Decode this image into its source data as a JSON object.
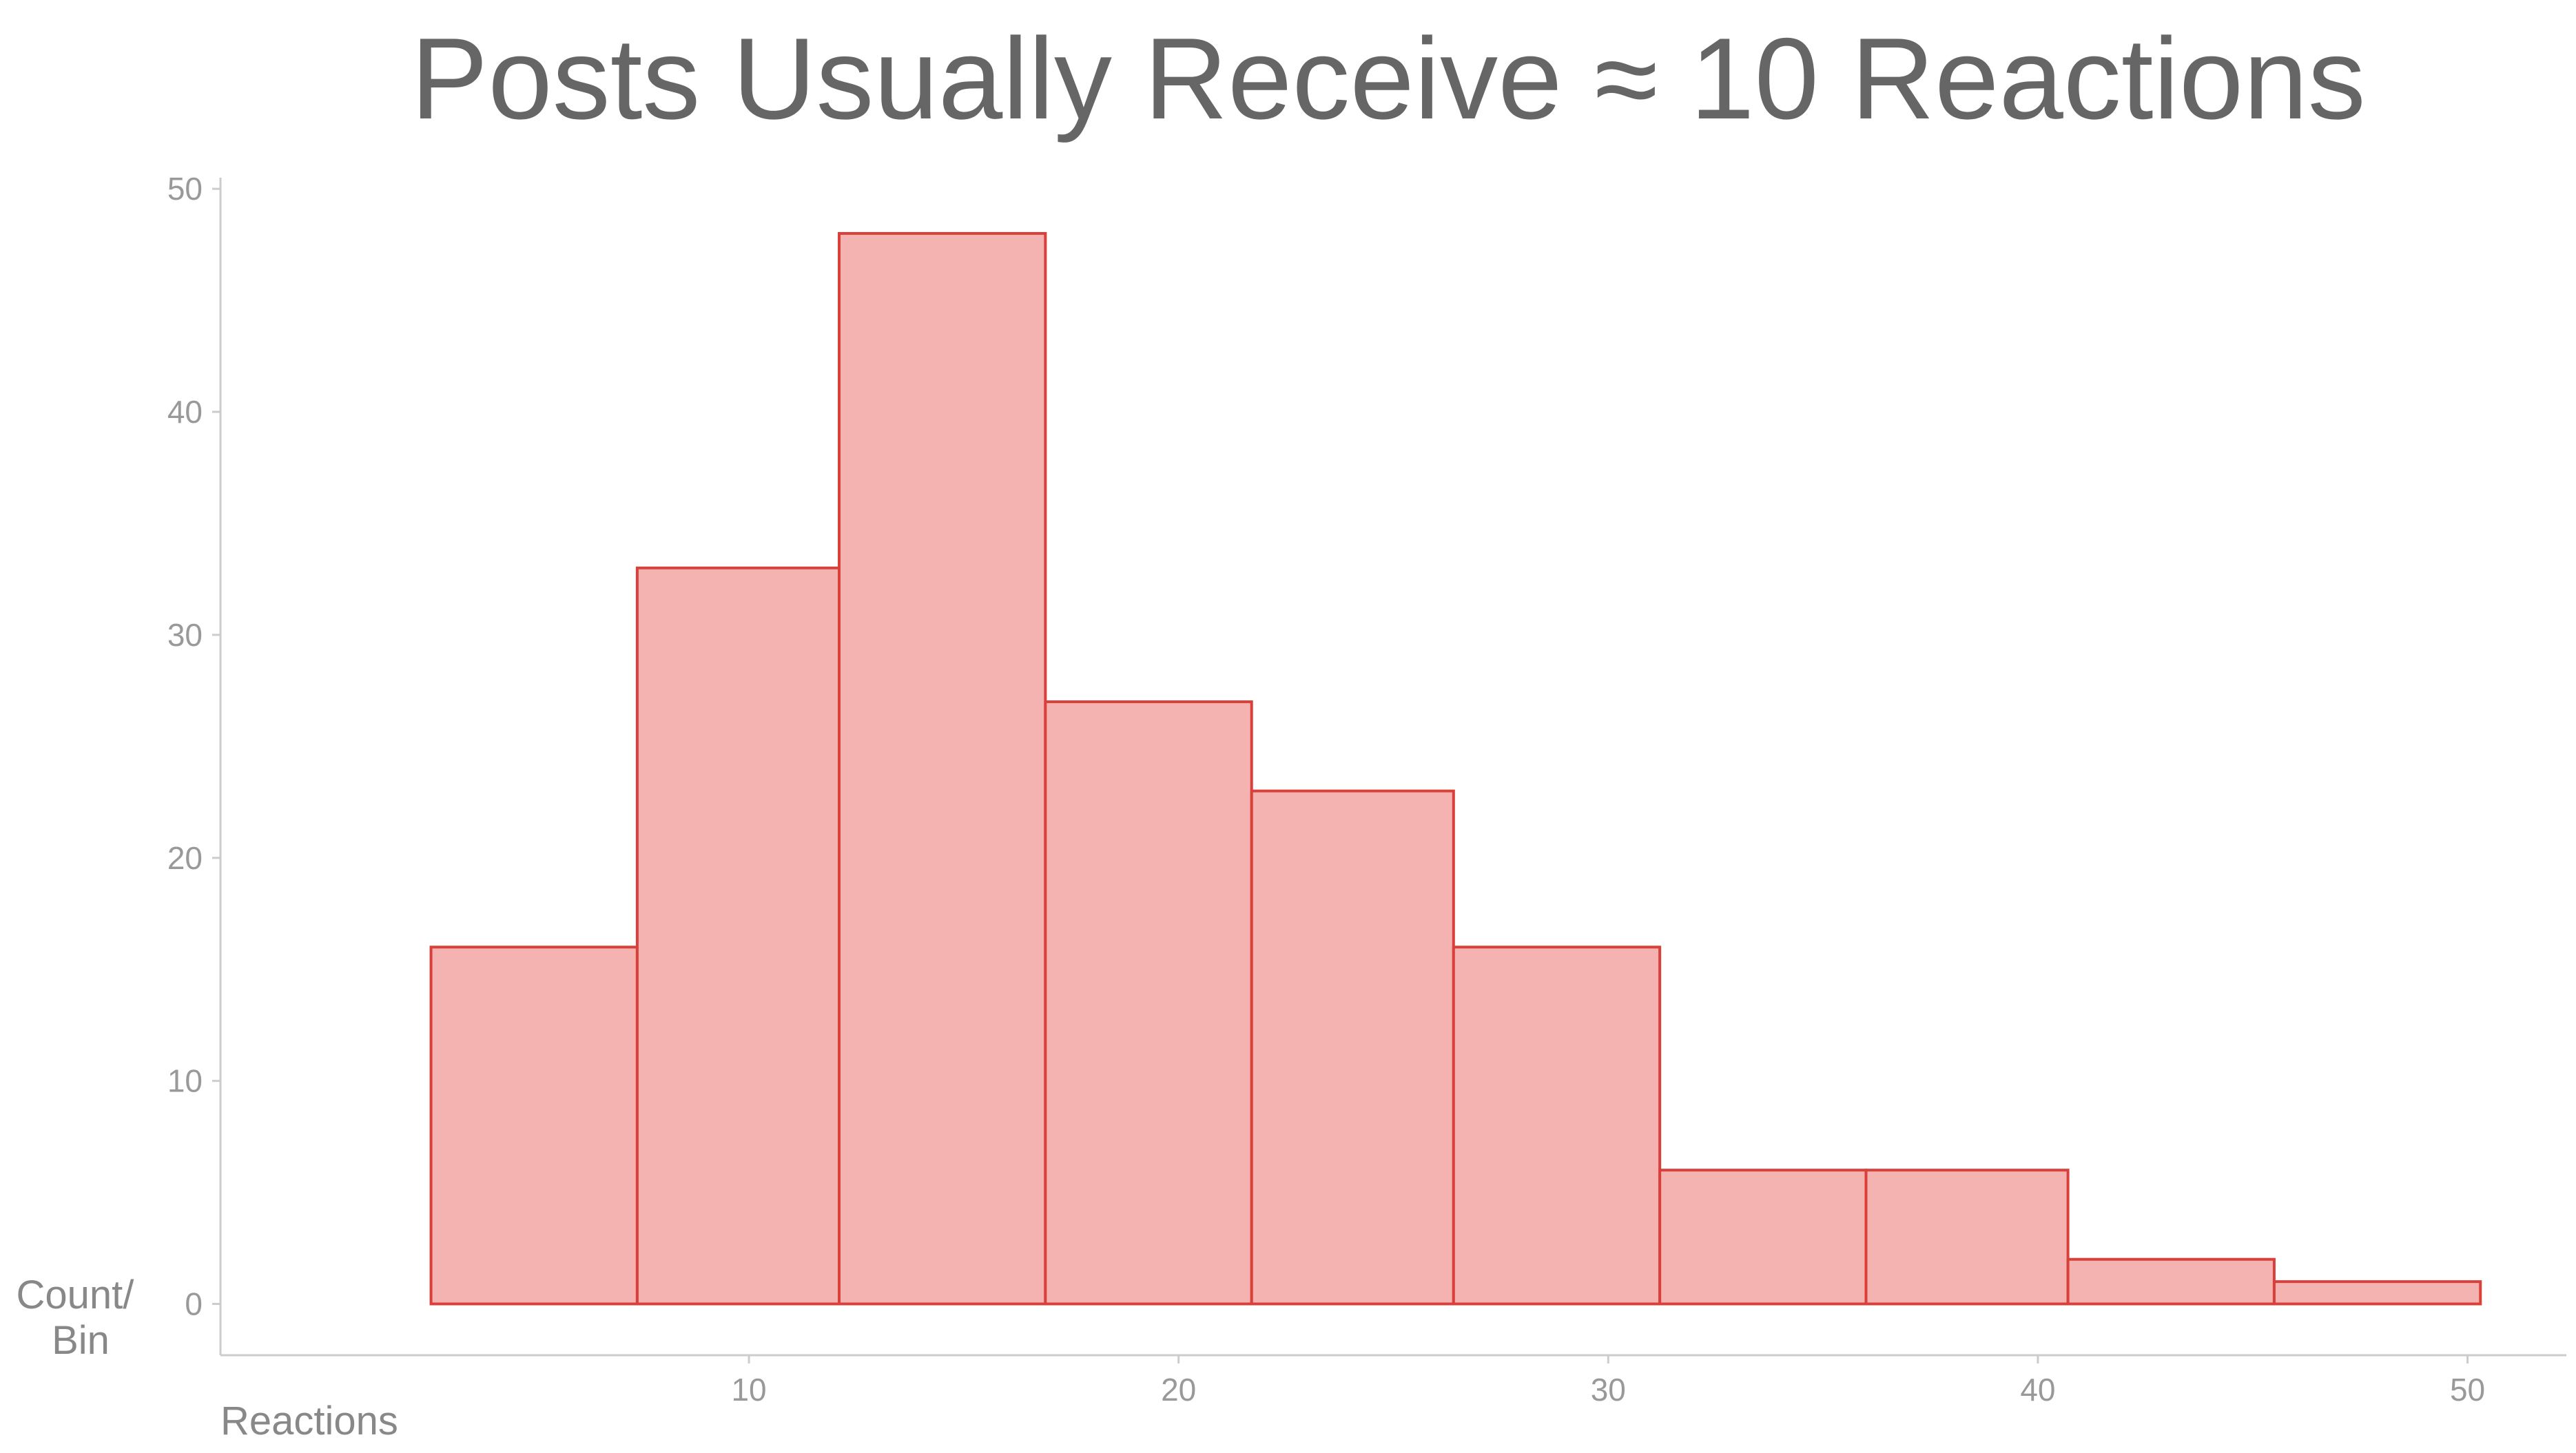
{
  "chart_data": {
    "type": "bar",
    "title": "Posts Usually Receive ≈ 10 Reactions",
    "xlabel": "Reactions",
    "ylabel_lines": [
      "Count/",
      "Bin"
    ],
    "bins": [
      {
        "x0": 2.6,
        "x1": 7.4,
        "count": 16
      },
      {
        "x0": 7.4,
        "x1": 12.1,
        "count": 33
      },
      {
        "x0": 12.1,
        "x1": 16.9,
        "count": 48
      },
      {
        "x0": 16.9,
        "x1": 21.7,
        "count": 27
      },
      {
        "x0": 21.7,
        "x1": 26.4,
        "count": 23
      },
      {
        "x0": 26.4,
        "x1": 31.2,
        "count": 16
      },
      {
        "x0": 31.2,
        "x1": 36.0,
        "count": 6
      },
      {
        "x0": 36.0,
        "x1": 40.7,
        "count": 6
      },
      {
        "x0": 40.7,
        "x1": 45.5,
        "count": 2
      },
      {
        "x0": 45.5,
        "x1": 50.3,
        "count": 1
      }
    ],
    "xlim": [
      -2.3,
      52.3
    ],
    "ylim": [
      -2.3,
      50.5
    ],
    "x_ticks": [
      10,
      20,
      30,
      40,
      50
    ],
    "y_ticks": [
      0,
      10,
      20,
      30,
      40,
      50
    ],
    "grid": false,
    "colors": {
      "bar_fill": "#f4b3b0",
      "bar_stroke": "#d9403a",
      "axis": "#cccccc",
      "title": "#666666",
      "tick_label": "#999999",
      "axis_title": "#888888"
    }
  }
}
